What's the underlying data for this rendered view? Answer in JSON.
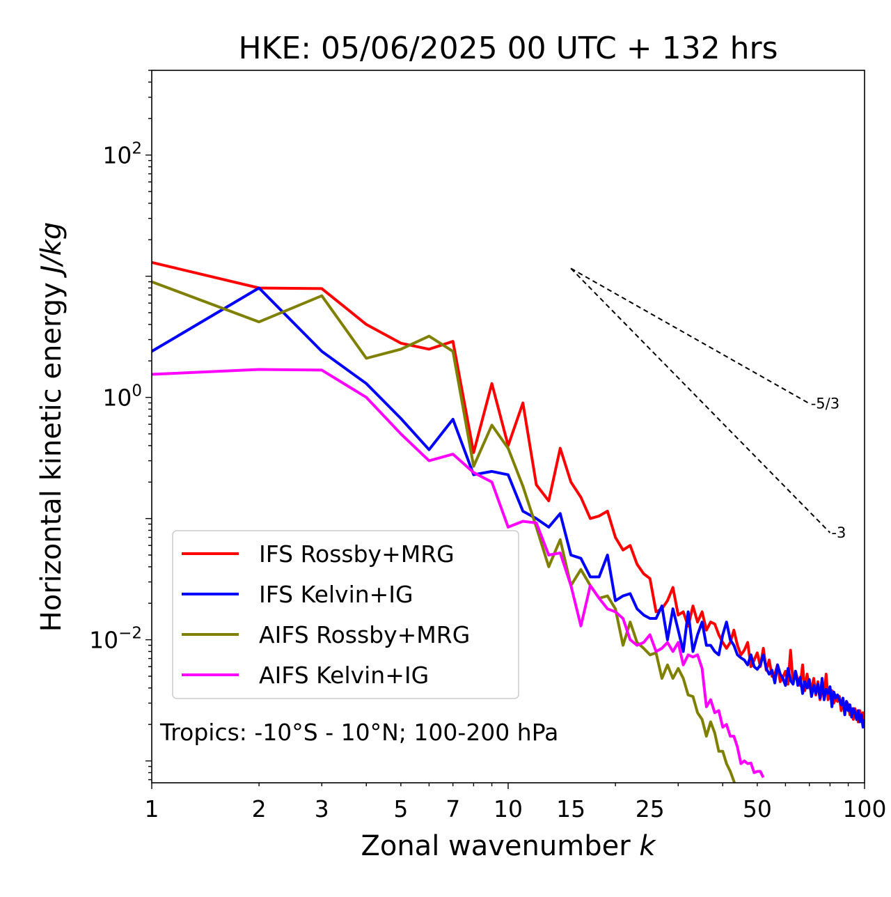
{
  "chart_data": {
    "type": "line",
    "title": "HKE: 05/06/2025 00 UTC + 132 hrs",
    "xlabel": "Zonal wavenumber k",
    "xlabel_prefix": "Zonal wavenumber ",
    "xlabel_var": "k",
    "ylabel": "Horizontal kinetic energy J/kg",
    "ylabel_prefix": "Horizontal kinetic energy ",
    "ylabel_unit": "J/kg",
    "xscale": "log",
    "yscale": "log",
    "xlim": [
      1,
      100
    ],
    "ylim": [
      0.00066,
      500
    ],
    "grid": false,
    "legend_position": "lower-left",
    "x_ticks": [
      {
        "value": 1,
        "label": "1"
      },
      {
        "value": 2,
        "label": "2"
      },
      {
        "value": 3,
        "label": "3"
      },
      {
        "value": 5,
        "label": "5"
      },
      {
        "value": 7,
        "label": "7"
      },
      {
        "value": 10,
        "label": "10"
      },
      {
        "value": 15,
        "label": "15"
      },
      {
        "value": 25,
        "label": "25"
      },
      {
        "value": 50,
        "label": "50"
      },
      {
        "value": 100,
        "label": "100"
      }
    ],
    "y_ticks": [
      {
        "value": 100,
        "base": "10",
        "exp": "2"
      },
      {
        "value": 1,
        "base": "10",
        "exp": "0"
      },
      {
        "value": 0.01,
        "base": "10",
        "exp": "−2"
      }
    ],
    "annotation": "Tropics: -10°S - 10°N; 100-200 hPa",
    "reference_slopes": [
      {
        "label": "-5/3",
        "slope": -1.6667,
        "x_start": 15,
        "x_end": 70,
        "y_start": 11.6
      },
      {
        "label": "-3",
        "slope": -3,
        "x_start": 15,
        "x_end": 80,
        "y_start": 11.6
      }
    ],
    "series": [
      {
        "name": "IFS Rossby+MRG",
        "color": "#ff0000",
        "x": [
          1,
          2,
          3,
          4,
          5,
          6,
          7,
          8,
          9,
          10,
          11,
          12,
          13,
          14,
          15,
          16,
          17,
          18,
          19,
          20,
          21,
          22,
          23,
          24,
          25,
          26,
          27,
          28,
          29,
          30,
          31,
          32,
          33,
          34,
          35,
          36,
          37,
          38,
          39,
          40,
          41,
          42,
          43,
          44,
          45,
          46,
          47,
          48,
          49,
          50,
          51,
          52,
          53,
          54,
          55,
          56,
          57,
          58,
          59,
          60,
          61,
          62,
          63,
          64,
          65,
          66,
          67,
          68,
          69,
          70,
          71,
          72,
          73,
          74,
          75,
          76,
          77,
          78,
          79,
          80,
          81,
          82,
          83,
          84,
          85,
          86,
          87,
          88,
          89,
          90,
          91,
          92,
          93,
          94,
          95,
          96,
          97,
          98,
          99,
          100
        ],
        "values": [
          13,
          8,
          7.9,
          4,
          2.8,
          2.5,
          2.9,
          0.35,
          1.3,
          0.4,
          0.9,
          0.19,
          0.14,
          0.38,
          0.2,
          0.15,
          0.1,
          0.105,
          0.115,
          0.07,
          0.055,
          0.06,
          0.042,
          0.035,
          0.032,
          0.017,
          0.018,
          0.021,
          0.027,
          0.016,
          0.017,
          0.013,
          0.019,
          0.014,
          0.017,
          0.012,
          0.014,
          0.0135,
          0.011,
          0.0095,
          0.0085,
          0.0095,
          0.012,
          0.009,
          0.0075,
          0.0082,
          0.0095,
          0.006,
          0.0068,
          0.0078,
          0.006,
          0.0085,
          0.0056,
          0.0068,
          0.005,
          0.0052,
          0.0062,
          0.0045,
          0.0049,
          0.0055,
          0.0043,
          0.0082,
          0.0044,
          0.0055,
          0.0046,
          0.0042,
          0.0062,
          0.0038,
          0.0052,
          0.004,
          0.0039,
          0.0048,
          0.0035,
          0.0045,
          0.0032,
          0.0039,
          0.0035,
          0.0052,
          0.0032,
          0.0035,
          0.0038,
          0.003,
          0.0033,
          0.0031,
          0.0034,
          0.0026,
          0.0032,
          0.0025,
          0.0031,
          0.0029,
          0.0024,
          0.0027,
          0.0022,
          0.0027,
          0.0024,
          0.0021,
          0.0026,
          0.0022,
          0.0025,
          0.0019
        ]
      },
      {
        "name": "IFS Kelvin+IG",
        "color": "#0000ff",
        "x": [
          1,
          2,
          3,
          4,
          5,
          6,
          7,
          8,
          9,
          10,
          11,
          12,
          13,
          14,
          15,
          16,
          17,
          18,
          19,
          20,
          21,
          22,
          23,
          24,
          25,
          26,
          27,
          28,
          29,
          30,
          31,
          32,
          33,
          34,
          35,
          36,
          37,
          38,
          39,
          40,
          41,
          42,
          43,
          44,
          45,
          46,
          47,
          48,
          49,
          50,
          51,
          52,
          53,
          54,
          55,
          56,
          57,
          58,
          59,
          60,
          61,
          62,
          63,
          64,
          65,
          66,
          67,
          68,
          69,
          70,
          71,
          72,
          73,
          74,
          75,
          76,
          77,
          78,
          79,
          80,
          81,
          82,
          83,
          84,
          85,
          86,
          87,
          88,
          89,
          90,
          91,
          92,
          93,
          94,
          95,
          96,
          97,
          98,
          99,
          100
        ],
        "values": [
          2.4,
          8,
          2.4,
          1.3,
          0.67,
          0.37,
          0.66,
          0.23,
          0.245,
          0.23,
          0.115,
          0.1,
          0.085,
          0.11,
          0.05,
          0.047,
          0.033,
          0.033,
          0.05,
          0.021,
          0.023,
          0.024,
          0.018,
          0.016,
          0.015,
          0.015,
          0.019,
          0.01,
          0.018,
          0.012,
          0.008,
          0.017,
          0.008,
          0.011,
          0.014,
          0.009,
          0.009,
          0.008,
          0.0075,
          0.011,
          0.014,
          0.01,
          0.009,
          0.0075,
          0.0071,
          0.0068,
          0.0062,
          0.0075,
          0.006,
          0.0057,
          0.0062,
          0.0075,
          0.0058,
          0.0052,
          0.0056,
          0.0044,
          0.0062,
          0.0052,
          0.0048,
          0.0042,
          0.0058,
          0.0046,
          0.0043,
          0.0055,
          0.0042,
          0.0049,
          0.0036,
          0.0045,
          0.004,
          0.0047,
          0.0034,
          0.0042,
          0.0036,
          0.0043,
          0.0033,
          0.0048,
          0.0032,
          0.0039,
          0.0036,
          0.0041,
          0.0028,
          0.0037,
          0.0033,
          0.0035,
          0.0032,
          0.0029,
          0.0033,
          0.0024,
          0.0031,
          0.0026,
          0.0029,
          0.0023,
          0.0027,
          0.0025,
          0.0022,
          0.0026,
          0.0021,
          0.0024,
          0.0019,
          0.0022
        ]
      },
      {
        "name": "AIFS Rossby+MRG",
        "color": "#808000",
        "x": [
          1,
          2,
          3,
          4,
          5,
          6,
          7,
          8,
          9,
          10,
          11,
          12,
          13,
          14,
          15,
          16,
          17,
          18,
          19,
          20,
          21,
          22,
          23,
          24,
          25,
          26,
          27,
          28,
          29,
          30,
          31,
          32,
          33,
          34,
          35,
          36,
          37,
          38,
          39,
          40,
          41,
          42,
          43,
          44,
          45
        ],
        "values": [
          9,
          4.2,
          6.9,
          2.1,
          2.5,
          3.2,
          2.4,
          0.27,
          0.59,
          0.38,
          0.185,
          0.085,
          0.04,
          0.067,
          0.028,
          0.038,
          0.028,
          0.022,
          0.023,
          0.018,
          0.009,
          0.014,
          0.0095,
          0.0085,
          0.0075,
          0.0078,
          0.0048,
          0.0062,
          0.0048,
          0.0058,
          0.0048,
          0.0035,
          0.0034,
          0.0025,
          0.0022,
          0.0016,
          0.0021,
          0.0017,
          0.0012,
          0.0012,
          0.00095,
          0.00082,
          0.00068,
          0.00055,
          0.00045
        ]
      },
      {
        "name": "AIFS Kelvin+IG",
        "color": "#ff00ff",
        "x": [
          1,
          2,
          3,
          4,
          5,
          6,
          7,
          8,
          9,
          10,
          11,
          12,
          13,
          14,
          15,
          16,
          17,
          18,
          19,
          20,
          21,
          22,
          23,
          24,
          25,
          26,
          27,
          28,
          29,
          30,
          31,
          32,
          33,
          34,
          35,
          36,
          37,
          38,
          39,
          40,
          41,
          42,
          43,
          44,
          45,
          46,
          47,
          48,
          49,
          50,
          51,
          52
        ],
        "values": [
          1.55,
          1.7,
          1.68,
          1.0,
          0.5,
          0.3,
          0.34,
          0.24,
          0.2,
          0.085,
          0.095,
          0.092,
          0.05,
          0.052,
          0.028,
          0.013,
          0.028,
          0.022,
          0.018,
          0.017,
          0.015,
          0.01,
          0.009,
          0.0095,
          0.011,
          0.008,
          0.0085,
          0.0095,
          0.008,
          0.0095,
          0.0062,
          0.0075,
          0.0072,
          0.0075,
          0.0058,
          0.0028,
          0.0032,
          0.0025,
          0.0026,
          0.0019,
          0.002,
          0.0016,
          0.0016,
          0.0013,
          0.00095,
          0.001,
          0.00095,
          0.00096,
          0.0008,
          0.00082,
          0.00082,
          0.00073
        ]
      }
    ]
  }
}
